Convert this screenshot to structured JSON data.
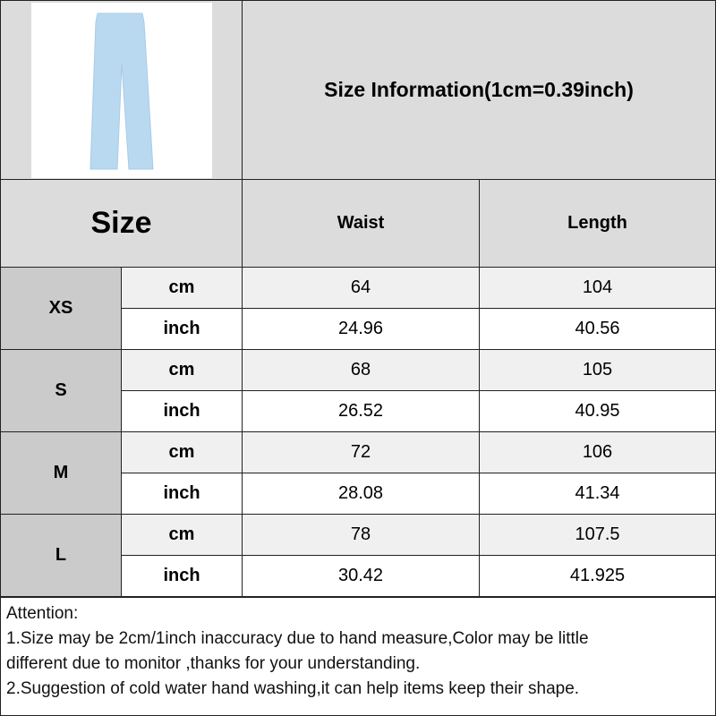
{
  "title": "Size Information(1cm=0.39inch)",
  "size_header": "Size",
  "columns": [
    "Waist",
    "Length"
  ],
  "product_image": "light-blue-wide-leg-pants",
  "colors": {
    "header_bg": "#dcdcdc",
    "size_label_bg": "#cbcbcb",
    "cm_row_bg": "#f0f0f0",
    "inch_row_bg": "#ffffff",
    "pants": "#b9d9f0"
  },
  "rows": [
    {
      "size": "XS",
      "cm": {
        "unit": "cm",
        "waist": "64",
        "length": "104"
      },
      "inch": {
        "unit": "inch",
        "waist": "24.96",
        "length": "40.56"
      }
    },
    {
      "size": "S",
      "cm": {
        "unit": "cm",
        "waist": "68",
        "length": "105"
      },
      "inch": {
        "unit": "inch",
        "waist": "26.52",
        "length": "40.95"
      }
    },
    {
      "size": "M",
      "cm": {
        "unit": "cm",
        "waist": "72",
        "length": "106"
      },
      "inch": {
        "unit": "inch",
        "waist": "28.08",
        "length": "41.34"
      }
    },
    {
      "size": "L",
      "cm": {
        "unit": "cm",
        "waist": "78",
        "length": "107.5"
      },
      "inch": {
        "unit": "inch",
        "waist": "30.42",
        "length": "41.925"
      }
    }
  ],
  "notes": [
    "Attention:",
    "1.Size may be 2cm/1inch inaccuracy due to hand measure,Color may be little",
    "different due to monitor ,thanks for your understanding.",
    "2.Suggestion of cold water hand washing,it can help items keep their shape."
  ]
}
